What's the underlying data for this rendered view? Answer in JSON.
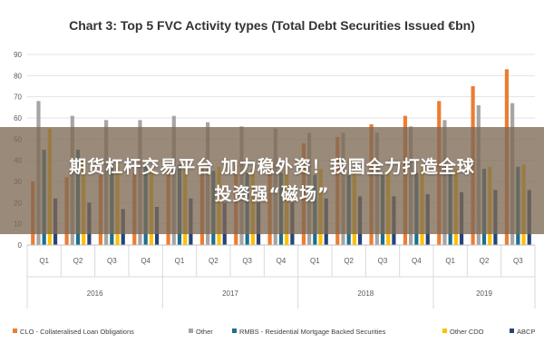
{
  "chart_data": {
    "type": "bar",
    "title": "Chart 3: Top 5 FVC Activity types (Total Debt Securities Issued €bn)",
    "ylim": [
      0,
      90
    ],
    "yticks": [
      0,
      10,
      20,
      30,
      40,
      50,
      60,
      70,
      80,
      90
    ],
    "grid": true,
    "legend_position": "bottom",
    "categories": [
      "Q1",
      "Q2",
      "Q3",
      "Q4",
      "Q1",
      "Q2",
      "Q3",
      "Q4",
      "Q1",
      "Q2",
      "Q3",
      "Q4",
      "Q1",
      "Q2",
      "Q3"
    ],
    "year_groups": [
      {
        "label": "2016",
        "count": 4
      },
      {
        "label": "2017",
        "count": 4
      },
      {
        "label": "2018",
        "count": 4
      },
      {
        "label": "2019",
        "count": 3
      }
    ],
    "series": [
      {
        "name": "CLO - Collateralised Loan Obligations",
        "color": "#ed7d31",
        "values": [
          30,
          32,
          33,
          34,
          35,
          37,
          38,
          40,
          48,
          51,
          57,
          61,
          68,
          75,
          83
        ]
      },
      {
        "name": "Other",
        "color": "#a5a5a5",
        "values": [
          68,
          61,
          59,
          59,
          61,
          58,
          56,
          55,
          53,
          53,
          53,
          56,
          59,
          66,
          67
        ]
      },
      {
        "name": "RMBS - Residential Mortgage Backed Securities",
        "color": "#1f6e8c",
        "values": [
          45,
          45,
          38,
          37,
          38,
          35,
          34,
          34,
          33,
          33,
          33,
          34,
          34,
          36,
          37
        ]
      },
      {
        "name": "Other CDO",
        "color": "#ffc000",
        "values": [
          55,
          40,
          37,
          36,
          37,
          37,
          36,
          36,
          36,
          35,
          35,
          36,
          36,
          37,
          38
        ]
      },
      {
        "name": "ABCP",
        "color": "#264478",
        "values": [
          22,
          20,
          17,
          18,
          22,
          20,
          20,
          20,
          22,
          23,
          23,
          24,
          25,
          26,
          26
        ]
      }
    ]
  },
  "overlay": {
    "line1": "期货杠杆交易平台 加力稳外资！我国全力打造全球",
    "line2": "投资强“磁场”"
  }
}
